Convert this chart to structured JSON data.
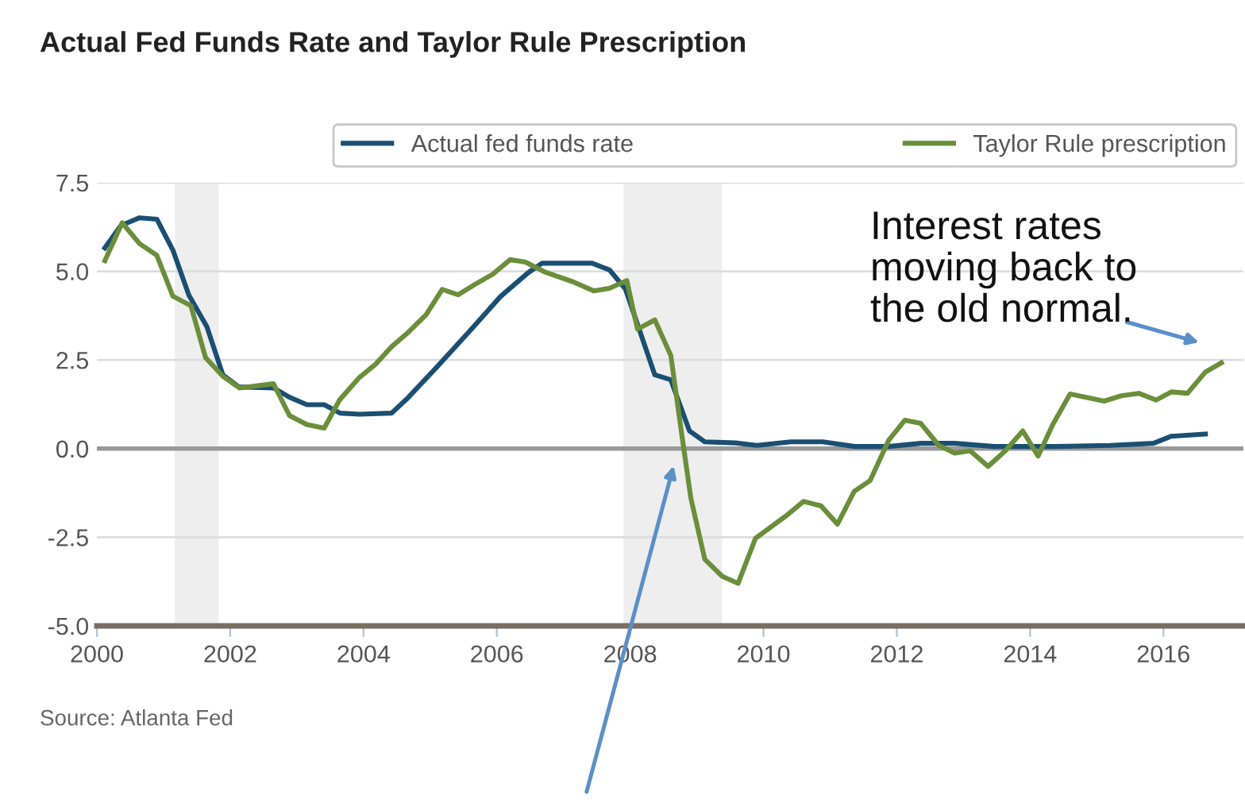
{
  "chart_data": {
    "type": "line",
    "title": "Actual Fed Funds Rate and Taylor Rule Prescription",
    "xlim": [
      2000,
      2017.2
    ],
    "xticks": [
      2000,
      2002,
      2004,
      2006,
      2008,
      2010,
      2012,
      2014,
      2016
    ],
    "ylim": [
      -5,
      7.5
    ],
    "yticks": [
      {
        "value": -5,
        "label": "-5.0"
      },
      {
        "value": -2.5,
        "label": "-2.5"
      },
      {
        "value": 0,
        "label": "0.0"
      },
      {
        "value": 2.5,
        "label": "2.5"
      },
      {
        "value": 5,
        "label": "5.0"
      },
      {
        "value": 7.5,
        "label": "7.5"
      }
    ],
    "grid": "y",
    "legend": "top",
    "line_style": "solid",
    "marker": "none",
    "series": [
      {
        "name": "Actual fed funds rate",
        "color": "#1b4f72",
        "x": [
          2000.12,
          2000.36,
          2000.64,
          2000.9,
          2001.14,
          2001.38,
          2001.65,
          2001.89,
          2002.13,
          2002.65,
          2002.89,
          2003.15,
          2003.41,
          2003.65,
          2003.94,
          2004.42,
          2004.66,
          2005.1,
          2005.58,
          2006.06,
          2006.47,
          2006.68,
          2007.43,
          2007.69,
          2007.93,
          2008.37,
          2008.61,
          2008.89,
          2009.12,
          2009.58,
          2009.9,
          2010.41,
          2010.89,
          2011.37,
          2011.88,
          2012.36,
          2012.87,
          2013.46,
          2014.4,
          2015.2,
          2015.85,
          2016.12,
          2016.63
        ],
        "values": [
          5.66,
          6.29,
          6.51,
          6.47,
          5.6,
          4.33,
          3.44,
          2.08,
          1.74,
          1.71,
          1.45,
          1.24,
          1.24,
          1.0,
          0.97,
          1.0,
          1.42,
          2.3,
          3.29,
          4.3,
          4.96,
          5.23,
          5.23,
          5.04,
          4.5,
          2.08,
          1.94,
          0.5,
          0.19,
          0.16,
          0.09,
          0.19,
          0.19,
          0.06,
          0.06,
          0.15,
          0.15,
          0.06,
          0.06,
          0.09,
          0.15,
          0.35,
          0.41
        ]
      },
      {
        "name": "Taylor Rule prescription",
        "color": "#6b8e3a",
        "x": [
          2000.12,
          2000.38,
          2000.64,
          2000.9,
          2001.14,
          2001.41,
          2001.63,
          2001.89,
          2002.14,
          2002.65,
          2002.89,
          2003.15,
          2003.41,
          2003.64,
          2003.94,
          2004.18,
          2004.42,
          2004.66,
          2004.94,
          2005.18,
          2005.42,
          2005.66,
          2005.94,
          2006.2,
          2006.43,
          2006.71,
          2007.15,
          2007.45,
          2007.69,
          2007.95,
          2008.11,
          2008.37,
          2008.61,
          2008.77,
          2008.91,
          2009.12,
          2009.38,
          2009.62,
          2009.88,
          2010.33,
          2010.6,
          2010.86,
          2011.11,
          2011.36,
          2011.6,
          2011.88,
          2012.12,
          2012.36,
          2012.63,
          2012.87,
          2013.1,
          2013.37,
          2013.63,
          2013.89,
          2014.12,
          2014.34,
          2014.6,
          2015.11,
          2015.37,
          2015.63,
          2015.89,
          2016.12,
          2016.36,
          2016.63,
          2016.87
        ],
        "values": [
          5.3,
          6.37,
          5.78,
          5.45,
          4.3,
          4.03,
          2.57,
          2.04,
          1.71,
          1.83,
          0.93,
          0.68,
          0.58,
          1.37,
          2.01,
          2.38,
          2.87,
          3.26,
          3.78,
          4.49,
          4.34,
          4.62,
          4.92,
          5.33,
          5.26,
          4.99,
          4.7,
          4.45,
          4.52,
          4.74,
          3.37,
          3.63,
          2.63,
          0.46,
          -1.39,
          -3.12,
          -3.6,
          -3.8,
          -2.53,
          -1.91,
          -1.49,
          -1.61,
          -2.13,
          -1.21,
          -0.9,
          0.24,
          0.8,
          0.71,
          0.09,
          -0.13,
          -0.06,
          -0.5,
          -0.06,
          0.5,
          -0.21,
          0.68,
          1.54,
          1.34,
          1.49,
          1.56,
          1.37,
          1.6,
          1.56,
          2.16,
          2.42
        ]
      }
    ],
    "ref_lines": [
      {
        "axis": "y",
        "value": 0,
        "color": "#999999"
      }
    ],
    "bands": [
      {
        "axis": "x",
        "from": 2001.17,
        "to": 2001.83,
        "color": "#eeeeee"
      },
      {
        "axis": "x",
        "from": 2007.9,
        "to": 2009.38,
        "color": "#eeeeee"
      }
    ],
    "annotations": [
      "Interest rates\nmoving back to\nthe old normal.",
      "Source: Atlanta Fed"
    ]
  }
}
